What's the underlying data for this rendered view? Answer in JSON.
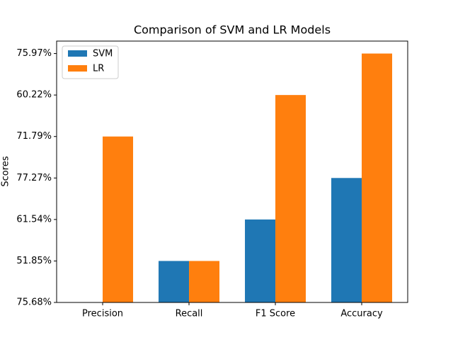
{
  "chart_data": {
    "type": "bar",
    "title": "Comparison of SVM and LR Models",
    "y_label": "Scores",
    "categories": [
      "Precision",
      "Recall",
      "F1 Score",
      "Accuracy"
    ],
    "series": [
      {
        "name": "SVM",
        "color": "#1f77b4",
        "values": [
          0,
          1,
          2,
          3
        ]
      },
      {
        "name": "LR",
        "color": "#ff7f0e",
        "values": [
          4,
          1,
          5,
          6
        ]
      }
    ],
    "ylim": [
      0,
      6.3
    ],
    "yticks": [
      {
        "value": 0,
        "label": "75.68%"
      },
      {
        "value": 1,
        "label": "51.85%"
      },
      {
        "value": 2,
        "label": "61.54%"
      },
      {
        "value": 3,
        "label": "77.27%"
      },
      {
        "value": 4,
        "label": "71.79%"
      },
      {
        "value": 5,
        "label": "60.22%"
      },
      {
        "value": 6,
        "label": "75.97%"
      }
    ],
    "legend": "upper left"
  }
}
